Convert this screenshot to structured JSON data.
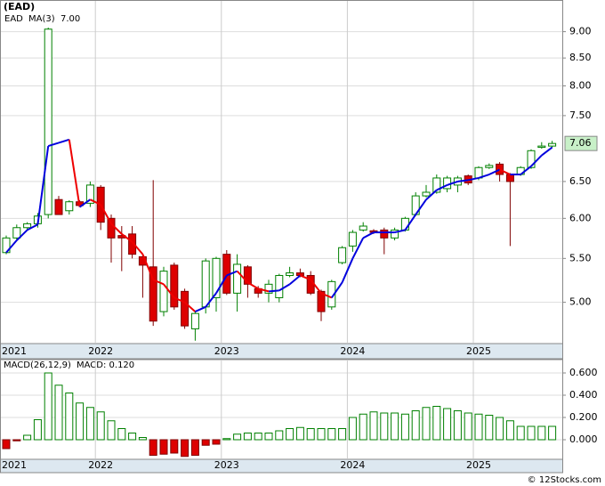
{
  "chart_data": [
    {
      "type": "candlestick",
      "title": "(EAD)",
      "log_scale": true,
      "grid": true,
      "up_color": "#008000",
      "down_color": "#dd0000",
      "categories": [
        "2021",
        null,
        null,
        null,
        null,
        null,
        null,
        null,
        null,
        "2022",
        null,
        null,
        null,
        null,
        null,
        null,
        null,
        null,
        null,
        null,
        null,
        "2023",
        null,
        null,
        null,
        null,
        null,
        null,
        null,
        null,
        null,
        null,
        null,
        "2024",
        null,
        null,
        null,
        null,
        null,
        null,
        null,
        null,
        null,
        null,
        null,
        "2025",
        null,
        null,
        null,
        null,
        null,
        null,
        null
      ],
      "series": [
        {
          "name": "EAD",
          "color": "#008000",
          "open": [
            5.57,
            5.75,
            5.88,
            5.93,
            6.05,
            6.25,
            6.1,
            6.22,
            6.2,
            6.42,
            6.0,
            5.78,
            5.8,
            5.52,
            5.4,
            4.9,
            5.42,
            5.12,
            4.72,
            4.95,
            5.05,
            5.55,
            5.1,
            5.4,
            5.15,
            5.1,
            5.05,
            5.3,
            5.33,
            5.3,
            5.12,
            4.95,
            5.45,
            5.65,
            5.85,
            5.84,
            5.85,
            5.75,
            5.85,
            6.05,
            6.3,
            6.35,
            6.4,
            6.45,
            6.58,
            6.55,
            6.7,
            6.75,
            6.6,
            6.6,
            6.7,
            7.0,
            7.02
          ],
          "high": [
            5.78,
            5.92,
            5.95,
            6.07,
            9.08,
            6.3,
            6.24,
            6.24,
            6.5,
            6.45,
            6.05,
            5.9,
            5.9,
            5.55,
            6.52,
            5.4,
            5.45,
            5.15,
            4.9,
            5.5,
            5.52,
            5.6,
            5.55,
            5.42,
            5.18,
            5.25,
            5.32,
            5.4,
            5.38,
            5.35,
            5.14,
            5.25,
            5.65,
            5.85,
            5.95,
            5.86,
            5.88,
            5.88,
            6.02,
            6.35,
            6.45,
            6.6,
            6.58,
            6.58,
            6.6,
            6.72,
            6.76,
            6.78,
            6.62,
            6.72,
            6.97,
            7.08,
            7.1
          ],
          "low": [
            5.55,
            5.72,
            5.85,
            5.88,
            6.0,
            6.05,
            6.05,
            6.15,
            6.15,
            5.85,
            5.45,
            5.35,
            5.5,
            5.05,
            4.75,
            4.85,
            4.92,
            4.72,
            4.6,
            4.88,
            4.9,
            5.08,
            4.9,
            5.05,
            5.05,
            5.0,
            5.0,
            5.28,
            5.28,
            5.08,
            4.8,
            4.92,
            5.43,
            5.58,
            5.83,
            5.8,
            5.55,
            5.72,
            5.83,
            6.03,
            6.28,
            6.33,
            6.35,
            6.35,
            6.45,
            6.52,
            6.68,
            6.5,
            5.65,
            6.58,
            6.68,
            6.98,
            7.0
          ],
          "close": [
            5.75,
            5.88,
            5.93,
            6.03,
            9.05,
            6.05,
            6.22,
            6.17,
            6.45,
            5.95,
            5.75,
            5.75,
            5.55,
            5.42,
            4.8,
            5.35,
            4.95,
            4.75,
            4.88,
            5.47,
            5.5,
            5.1,
            5.43,
            5.2,
            5.1,
            5.2,
            5.3,
            5.33,
            5.3,
            5.1,
            4.9,
            5.23,
            5.63,
            5.82,
            5.9,
            5.82,
            5.75,
            5.85,
            6.0,
            6.3,
            6.35,
            6.55,
            6.55,
            6.55,
            6.48,
            6.7,
            6.73,
            6.6,
            6.5,
            6.7,
            6.95,
            7.02,
            7.06
          ],
          "last_label": {
            "value": 7.06,
            "label": "7.06"
          }
        },
        {
          "name": "MA(3)",
          "color": "#0000dd",
          "down_color": "#ee0000",
          "legend_value": "7.00",
          "values": [
            5.57,
            5.72,
            5.85,
            5.92,
            7.02,
            7.07,
            7.12,
            6.15,
            6.25,
            6.18,
            5.93,
            5.8,
            5.7,
            5.55,
            5.25,
            5.2,
            5.05,
            5.0,
            4.9,
            4.95,
            5.1,
            5.3,
            5.35,
            5.22,
            5.15,
            5.12,
            5.13,
            5.2,
            5.3,
            5.25,
            5.1,
            5.05,
            5.22,
            5.5,
            5.75,
            5.82,
            5.82,
            5.82,
            5.85,
            6.05,
            6.25,
            6.38,
            6.45,
            6.5,
            6.52,
            6.55,
            6.6,
            6.67,
            6.6,
            6.6,
            6.72,
            6.88,
            7.0
          ]
        }
      ],
      "ylim": [
        4.58,
        9.42
      ],
      "yticks": [
        {
          "value": 9,
          "label": "9.00"
        },
        {
          "value": 8.5,
          "label": "8.50"
        },
        {
          "value": 8,
          "label": "8.00"
        },
        {
          "value": 7.5,
          "label": "7.50"
        },
        {
          "value": 6.5,
          "label": "6.50"
        },
        {
          "value": 6,
          "label": "6.00"
        },
        {
          "value": 5.5,
          "label": "5.50"
        },
        {
          "value": 5,
          "label": "5.00"
        }
      ]
    },
    {
      "type": "bar",
      "title": "MACD(26,12,9)",
      "legend_value": "MACD: 0.120",
      "color": "#008000",
      "negative_color": "#dd0000",
      "grid": true,
      "values": [
        -0.08,
        -0.01,
        0.04,
        0.18,
        0.6,
        0.49,
        0.42,
        0.33,
        0.29,
        0.25,
        0.17,
        0.1,
        0.06,
        0.02,
        -0.14,
        -0.13,
        -0.12,
        -0.15,
        -0.14,
        -0.05,
        -0.04,
        0.01,
        0.05,
        0.06,
        0.06,
        0.06,
        0.08,
        0.1,
        0.11,
        0.1,
        0.1,
        0.1,
        0.1,
        0.2,
        0.23,
        0.25,
        0.24,
        0.24,
        0.23,
        0.26,
        0.29,
        0.3,
        0.28,
        0.26,
        0.24,
        0.23,
        0.22,
        0.2,
        0.17,
        0.12,
        0.12,
        0.12,
        0.12
      ],
      "ylim": [
        -0.168,
        0.712
      ],
      "yticks": [
        {
          "value": 0.6,
          "label": "0.600"
        },
        {
          "value": 0.4,
          "label": "0.400"
        },
        {
          "value": 0.2,
          "label": "0.200"
        },
        {
          "value": 0,
          "label": "0.000"
        }
      ]
    }
  ],
  "footer": "© 12Stocks.com"
}
